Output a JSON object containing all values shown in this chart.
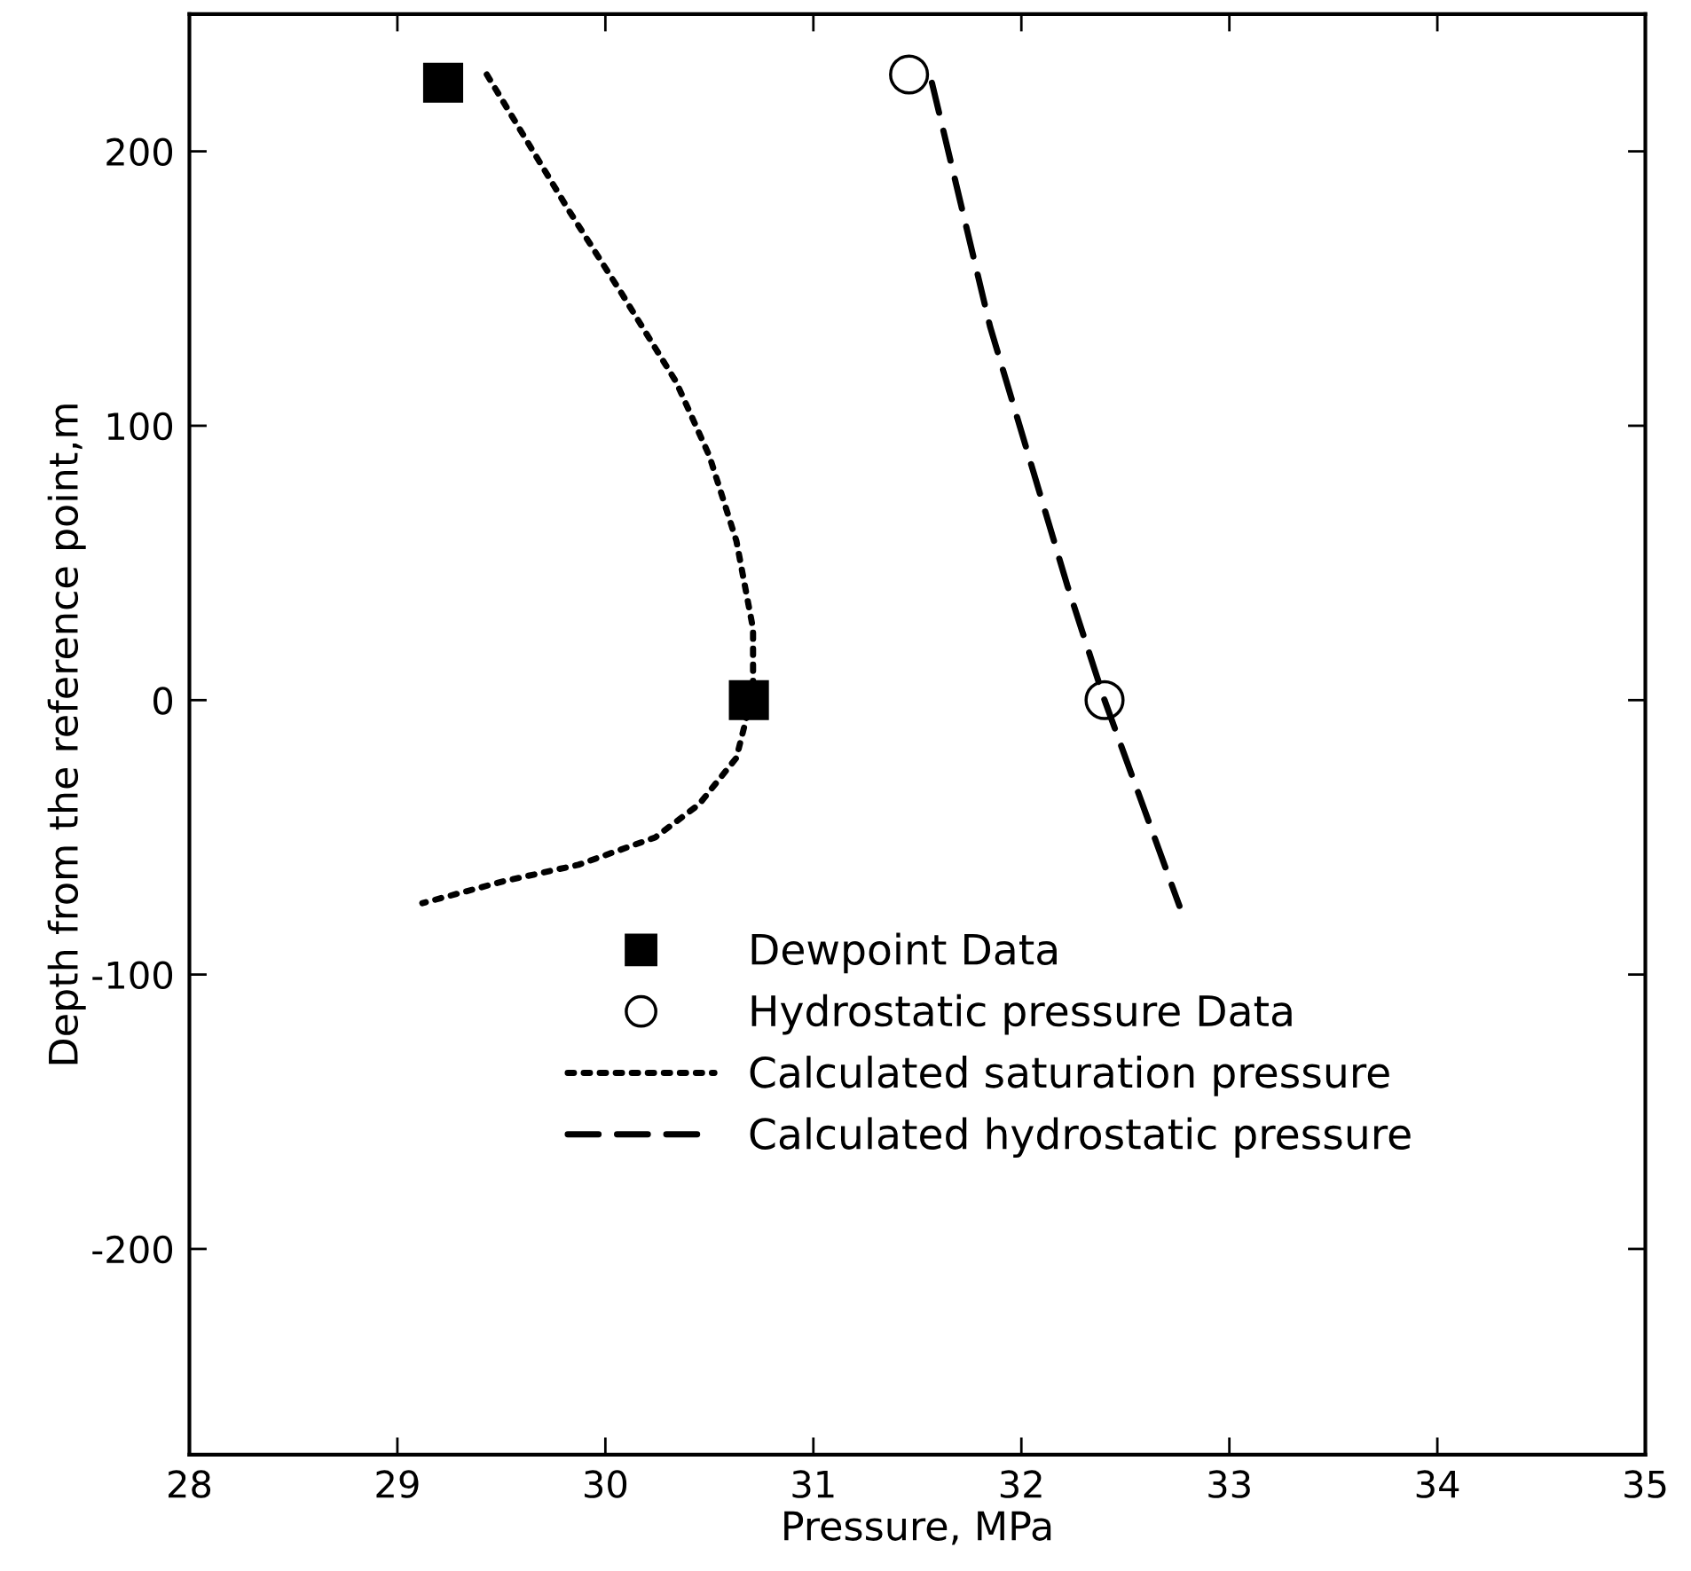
{
  "chart_data": {
    "type": "line",
    "xlabel": "Pressure, MPa",
    "ylabel": "Depth from the reference point,m",
    "xlim": [
      28,
      35
    ],
    "ylim": [
      -275,
      250
    ],
    "xticks": [
      28,
      29,
      30,
      31,
      32,
      33,
      34,
      35
    ],
    "yticks": [
      {
        "value": -200,
        "label": "-200"
      },
      {
        "value": -100,
        "label": "-100"
      },
      0,
      100,
      200
    ],
    "grid": false,
    "legend": "bottom",
    "series": [
      {
        "name": "Dewpoint Data",
        "type": "scatter",
        "marker": "square",
        "color": "#000000",
        "x": [
          29.22,
          30.69
        ],
        "values": [
          225,
          0
        ]
      },
      {
        "name": "Hydrostatic pressure Data",
        "type": "scatter",
        "marker": "circle",
        "color": "#000000",
        "x": [
          31.46,
          32.4
        ],
        "values": [
          228,
          0
        ]
      },
      {
        "name": "Calculated saturation pressure",
        "line_style": "dotted",
        "color": "#000000",
        "x": [
          29.43,
          29.82,
          30.08,
          30.34,
          30.5,
          30.63,
          30.71,
          30.71,
          30.63,
          30.45,
          30.24,
          29.87,
          29.51,
          29.12
        ],
        "values": [
          228,
          179,
          148,
          116,
          89,
          58,
          26,
          3,
          -21,
          -38,
          -50,
          -60,
          -66,
          -74
        ]
      },
      {
        "name": "Calculated hydrostatic pressure",
        "line_style": "dashed",
        "color": "#000000",
        "x": [
          31.57,
          31.85,
          32.22,
          32.4,
          32.76
        ],
        "values": [
          225,
          136,
          42,
          0,
          -75
        ]
      }
    ]
  }
}
